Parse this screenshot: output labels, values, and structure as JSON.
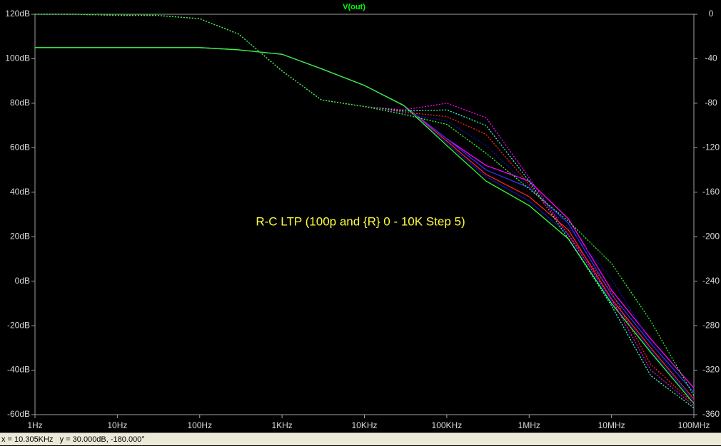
{
  "chart_data": {
    "type": "line",
    "title": "V(out)",
    "annotation": "R-C LTP (100p and {R} 0 - 10K Step 5)",
    "xscale": "log",
    "x": [
      1,
      3,
      10,
      30,
      100,
      300,
      1000,
      3000,
      10000,
      30000,
      100000,
      300000,
      1000000,
      3000000,
      10000000,
      30000000,
      100000000
    ],
    "xlim": [
      1,
      100000000
    ],
    "xticks": [
      {
        "value": 1,
        "label": "1Hz"
      },
      {
        "value": 10,
        "label": "10Hz"
      },
      {
        "value": 100,
        "label": "100Hz"
      },
      {
        "value": 1000,
        "label": "1KHz"
      },
      {
        "value": 10000,
        "label": "10KHz"
      },
      {
        "value": 100000,
        "label": "100KHz"
      },
      {
        "value": 1000000,
        "label": "1MHz"
      },
      {
        "value": 10000000,
        "label": "10MHz"
      },
      {
        "value": 100000000,
        "label": "100MHz"
      }
    ],
    "ylim": [
      -60,
      120
    ],
    "yticks": [
      {
        "value": 120,
        "label": "120dB"
      },
      {
        "value": 100,
        "label": "100dB"
      },
      {
        "value": 80,
        "label": "80dB"
      },
      {
        "value": 60,
        "label": "60dB"
      },
      {
        "value": 40,
        "label": "40dB"
      },
      {
        "value": 20,
        "label": "20dB"
      },
      {
        "value": 0,
        "label": "0dB"
      },
      {
        "value": -20,
        "label": "-20dB"
      },
      {
        "value": -40,
        "label": "-40dB"
      },
      {
        "value": -60,
        "label": "-60dB"
      }
    ],
    "y2lim": [
      -360,
      0
    ],
    "y2ticks": [
      0,
      -40,
      -80,
      -120,
      -160,
      -200,
      -240,
      -280,
      -320,
      -360
    ],
    "series": [
      {
        "color": "#ff00ff",
        "style": "solid",
        "values": [
          105,
          105,
          105,
          105,
          105,
          104,
          102,
          95.5,
          88,
          79,
          64,
          52,
          45,
          28,
          -4,
          -26,
          -48
        ]
      },
      {
        "color": "#3030ff",
        "style": "solid",
        "values": [
          105,
          105,
          105,
          105,
          105,
          104,
          102,
          95.5,
          88,
          79,
          64,
          50,
          42,
          26,
          -6,
          -28,
          -50
        ]
      },
      {
        "color": "#ff2020",
        "style": "solid",
        "values": [
          105,
          105,
          105,
          105,
          105,
          104,
          102,
          95.5,
          88,
          79,
          63,
          48,
          38,
          23,
          -8,
          -30,
          -53
        ]
      },
      {
        "color": "#1010a0",
        "style": "solid",
        "values": [
          105,
          105,
          105,
          105,
          105,
          104,
          102,
          95.5,
          88,
          79,
          62,
          47,
          36,
          21,
          -9,
          -31,
          -54
        ]
      },
      {
        "color": "#30ff30",
        "style": "solid",
        "values": [
          105,
          105,
          105,
          105,
          105,
          104,
          102,
          95.5,
          88,
          79,
          61,
          45,
          34,
          19,
          -10,
          -32,
          -55
        ]
      },
      {
        "color": "#ff00ff",
        "style": "dotted",
        "axis": "y2",
        "values": [
          0,
          0,
          -1,
          -1,
          -4,
          -18,
          -51,
          -77,
          -83,
          -86,
          -80,
          -93,
          -147,
          -199,
          -256,
          -320,
          -352
        ]
      },
      {
        "color": "#30ffc0",
        "style": "dotted",
        "axis": "y2",
        "values": [
          0,
          0,
          -1,
          -1,
          -4,
          -18,
          -51,
          -77,
          -83,
          -87,
          -86,
          -100,
          -150,
          -202,
          -262,
          -325,
          -354
        ]
      },
      {
        "color": "#ff2020",
        "style": "dotted",
        "axis": "y2",
        "values": [
          0,
          0,
          -1,
          -1,
          -4,
          -18,
          -51,
          -77,
          -83,
          -88,
          -92,
          -108,
          -153,
          -198,
          -250,
          -315,
          -350
        ]
      },
      {
        "color": "#1010a0",
        "style": "dotted",
        "axis": "y2",
        "values": [
          0,
          0,
          -1,
          -1,
          -4,
          -18,
          -51,
          -77,
          -83,
          -89,
          -96,
          -118,
          -155,
          -192,
          -238,
          -295,
          -348
        ]
      },
      {
        "color": "#30ff30",
        "style": "dotted",
        "axis": "y2",
        "values": [
          0,
          0,
          -1,
          -1,
          -4,
          -18,
          -51,
          -77,
          -83,
          -90,
          -99,
          -125,
          -157,
          -186,
          -224,
          -276,
          -343
        ]
      }
    ],
    "title_color": "#00ff00",
    "annotation_color": "#ffff40",
    "grid": false
  },
  "status_text": "x = 10.305KHz   y = 30.000dB, -180.000°"
}
